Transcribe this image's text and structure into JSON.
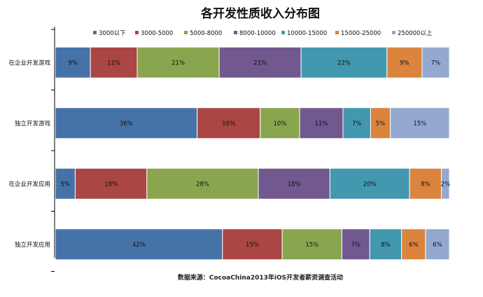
{
  "chart_data": {
    "type": "bar",
    "orientation": "horizontal",
    "stacked": true,
    "title": "各开发性质收入分布图",
    "source_note": "数据来源：CocoaChina2013年iOS开发者薪资调查活动",
    "categories": [
      "在企业开发游戏",
      "独立开发游戏",
      "在企业开发应用",
      "独立开发应用"
    ],
    "series": [
      {
        "name": "3000以下",
        "color": "#4572A7",
        "values": [
          9,
          36,
          5,
          42
        ],
        "labels": [
          "9%",
          "36%",
          "5%",
          "42%"
        ]
      },
      {
        "name": "3000-5000",
        "color": "#AA4643",
        "values": [
          12,
          16,
          18,
          15
        ],
        "labels": [
          "12%",
          "16%",
          "18%",
          "15%"
        ]
      },
      {
        "name": "5000-8000",
        "color": "#89A54E",
        "values": [
          21,
          10,
          28,
          15
        ],
        "labels": [
          "21%",
          "10%",
          "28%",
          "15%"
        ]
      },
      {
        "name": "8000-10000",
        "color": "#71588F",
        "values": [
          21,
          11,
          18,
          7
        ],
        "labels": [
          "21%",
          "11%",
          "18%",
          "7%"
        ]
      },
      {
        "name": "10000-15000",
        "color": "#4198AF",
        "values": [
          22,
          7,
          20,
          8
        ],
        "labels": [
          "22%",
          "7%",
          "20%",
          "8%"
        ]
      },
      {
        "name": "15000-25000",
        "color": "#DB843D",
        "values": [
          9,
          5,
          8,
          6
        ],
        "labels": [
          "9%",
          "5%",
          "8%",
          "6%"
        ]
      },
      {
        "name": "250000以上",
        "color": "#93A9CF",
        "values": [
          7,
          15,
          2,
          6
        ],
        "labels": [
          "7%",
          "15%",
          "2%",
          "6%"
        ]
      }
    ],
    "legend_position": "top",
    "grid": false
  }
}
